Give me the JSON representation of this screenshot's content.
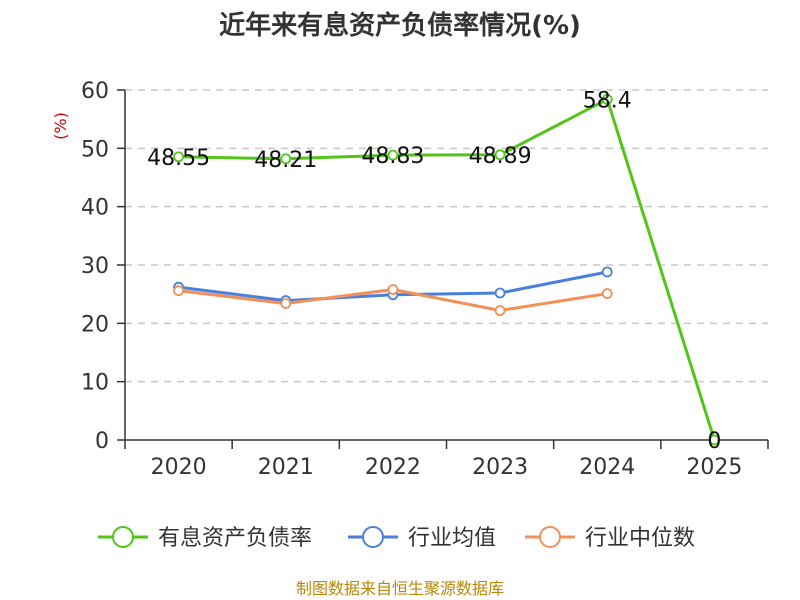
{
  "chart_data": {
    "type": "line",
    "title": "近年来有息资产负债率情况(%)",
    "ylabel": "(%)",
    "xlabel": "",
    "categories": [
      "2020",
      "2021",
      "2022",
      "2023",
      "2024",
      "2025"
    ],
    "ylim": [
      0,
      60
    ],
    "yticks": [
      0,
      10,
      20,
      30,
      40,
      50,
      60
    ],
    "grid": true,
    "legend_position": "bottom",
    "series": [
      {
        "name": "有息资产负债率",
        "color": "#52c41a",
        "values": [
          48.55,
          48.21,
          48.83,
          48.89,
          58.4,
          0
        ],
        "labels": [
          "48.55",
          "48.21",
          "48.83",
          "48.89",
          "58.4",
          "0"
        ]
      },
      {
        "name": "行业均值",
        "color": "#4a7fdb",
        "values": [
          26.2,
          23.9,
          24.9,
          25.2,
          28.8,
          null
        ]
      },
      {
        "name": "行业中位数",
        "color": "#f0915a",
        "values": [
          25.6,
          23.4,
          25.8,
          22.2,
          25.1,
          null
        ]
      }
    ],
    "source": "制图数据来自恒生聚源数据库"
  }
}
